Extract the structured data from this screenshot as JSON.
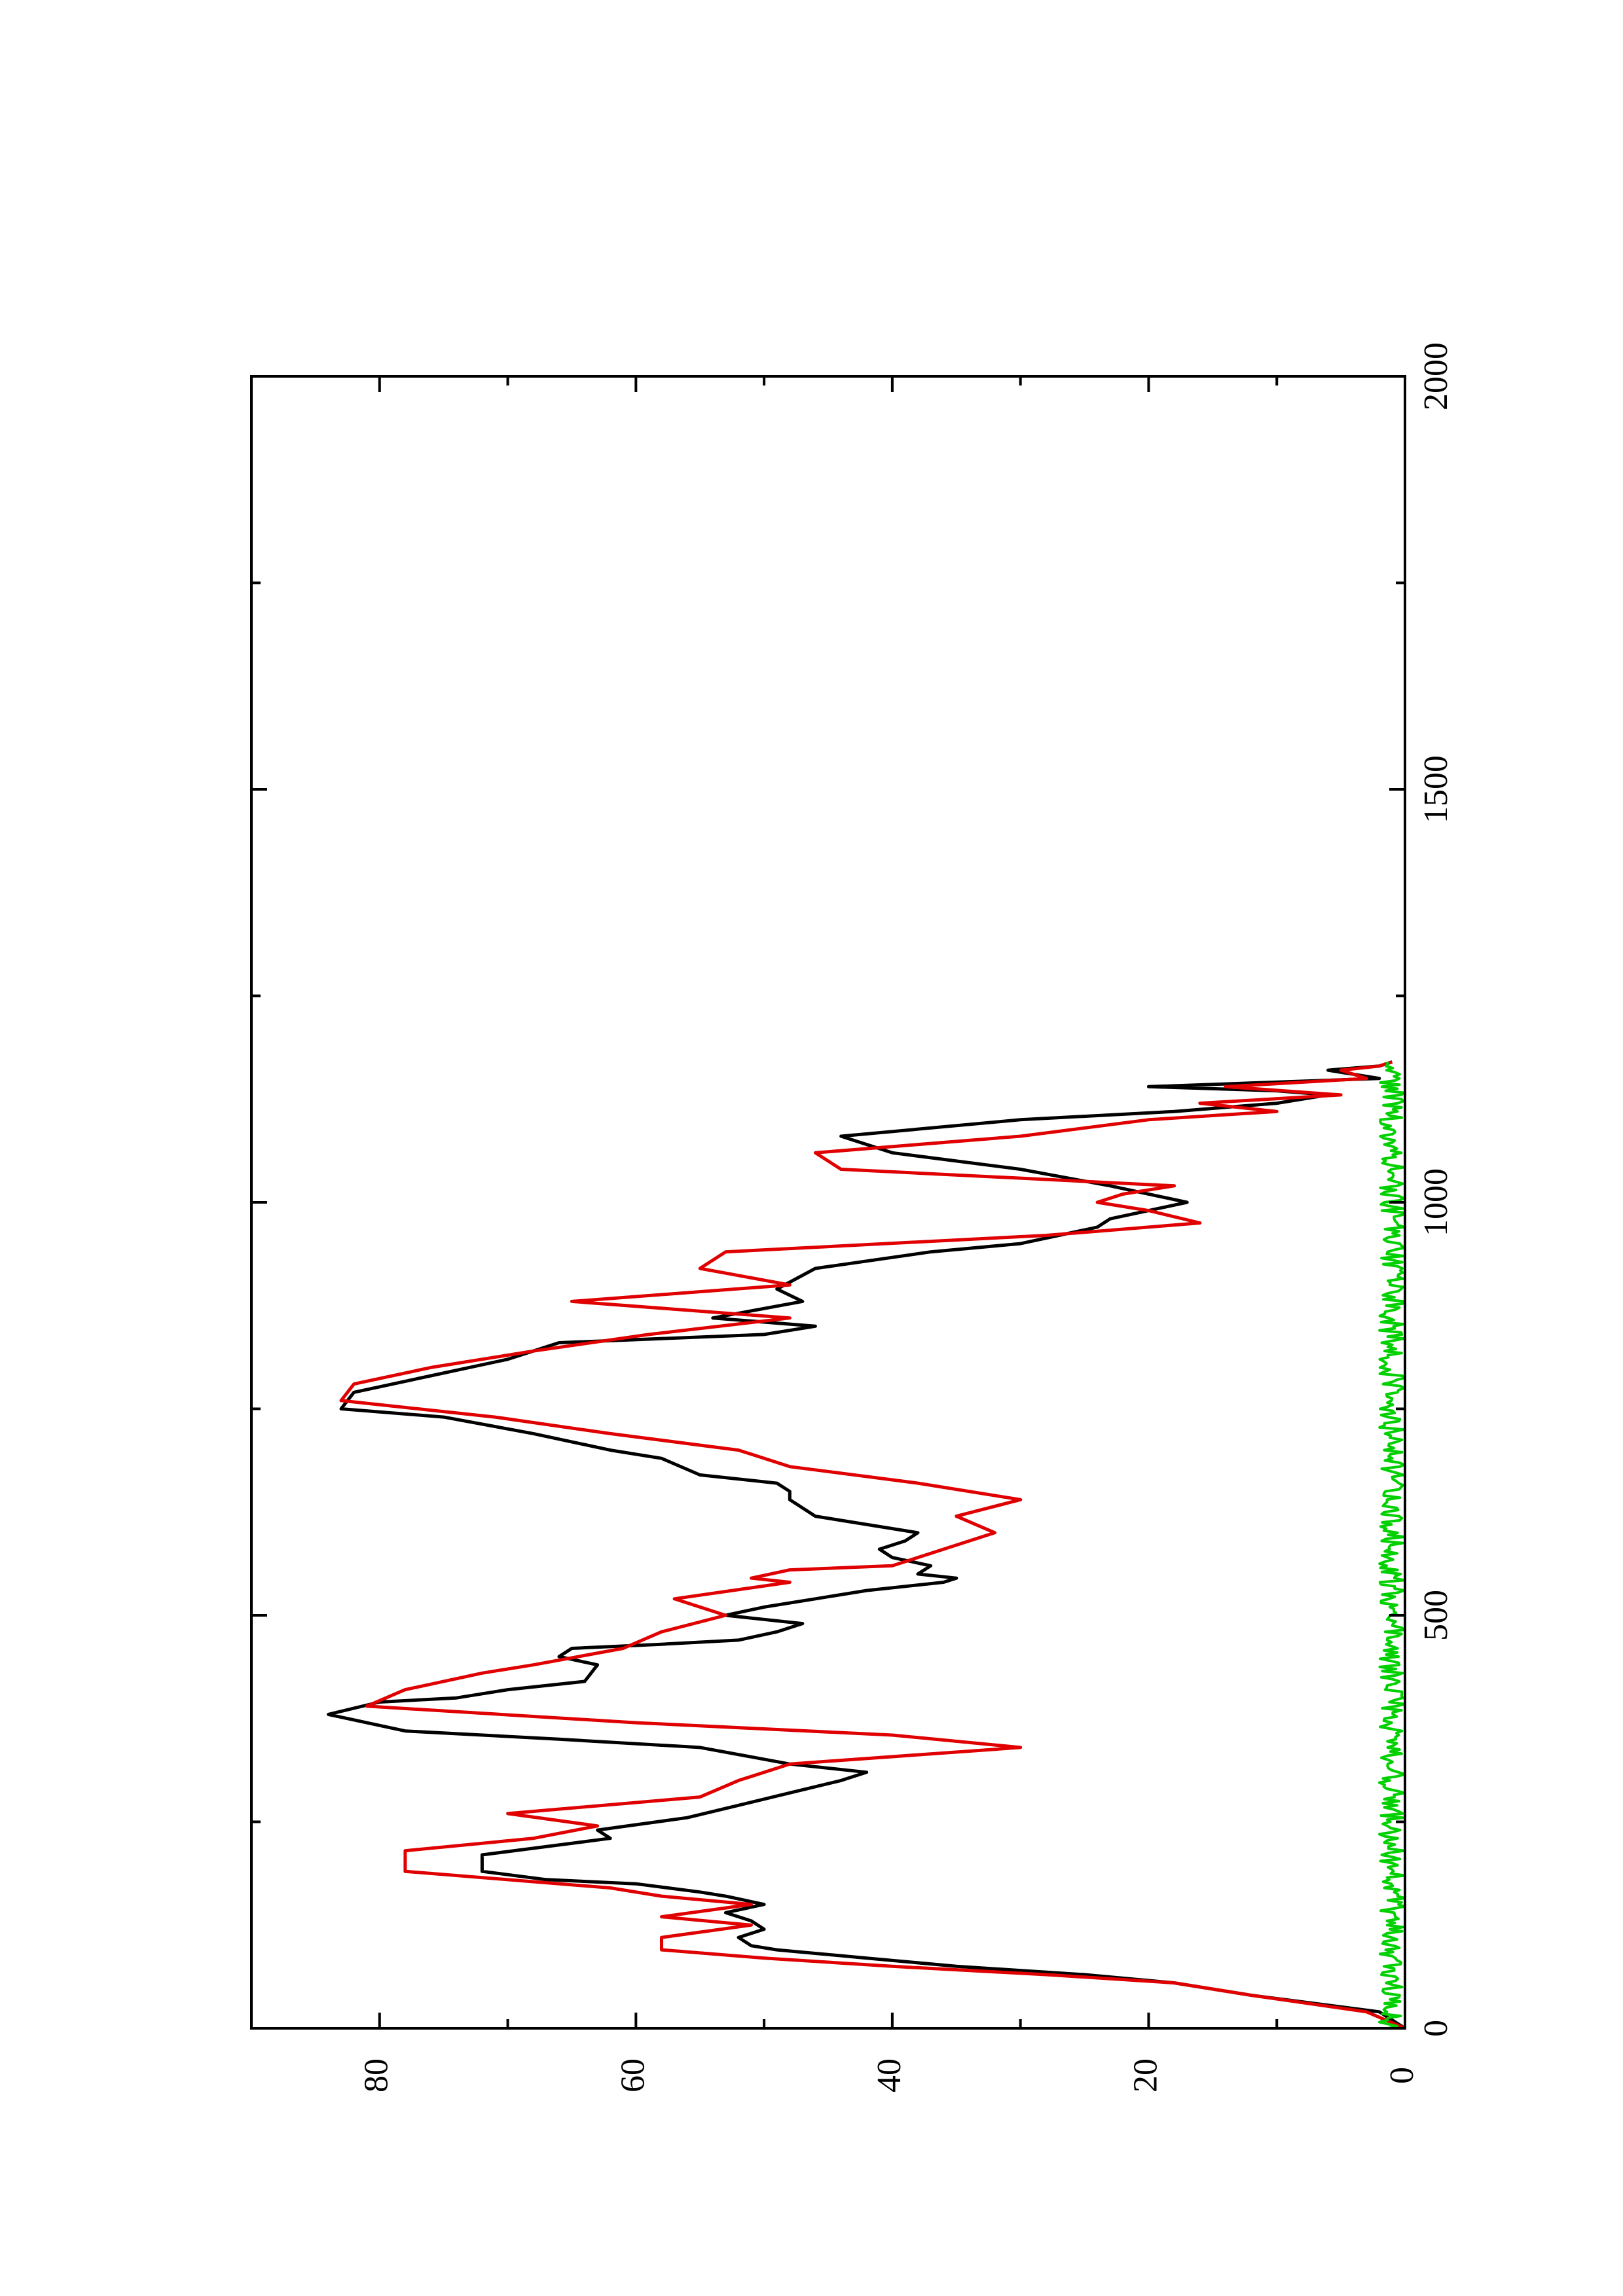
{
  "chart_data": {
    "type": "line",
    "title": "",
    "xlabel": "",
    "ylabel": "",
    "xlim": [
      0,
      2000
    ],
    "ylim": [
      0,
      90
    ],
    "xticks": [
      "0",
      "500",
      "1000",
      "1500",
      "2000"
    ],
    "yticks": [
      "0",
      "20",
      "40",
      "60",
      "80"
    ],
    "x_minor_ticks": [
      250,
      750,
      1250,
      1750
    ],
    "y_minor_ticks": [
      10,
      30,
      50,
      70
    ],
    "orientation": "rotated 90° counter-clockwise on the page",
    "grid": false,
    "legend": "none",
    "colors": {
      "black": "#000000",
      "red": "#e00000",
      "green": "#00d000"
    },
    "series": [
      {
        "color": "#000000",
        "x": [
          0,
          20,
          40,
          55,
          65,
          75,
          85,
          95,
          100,
          110,
          120,
          130,
          140,
          150,
          160,
          165,
          175,
          180,
          190,
          200,
          210,
          220,
          230,
          240,
          255,
          270,
          285,
          300,
          310,
          320,
          340,
          350,
          360,
          380,
          395,
          400,
          410,
          420,
          440,
          450,
          460,
          465,
          470,
          480,
          490,
          500,
          510,
          520,
          530,
          540,
          545,
          550,
          560,
          570,
          580,
          590,
          600,
          620,
          640,
          650,
          660,
          670,
          690,
          700,
          720,
          740,
          750,
          770,
          790,
          810,
          830,
          840,
          850,
          860,
          880,
          895,
          920,
          940,
          950,
          960,
          970,
          980,
          1000,
          1010,
          1020,
          1040,
          1060,
          1080,
          1100,
          1110,
          1120,
          1130,
          1135,
          1140,
          1150,
          1160,
          1165,
          1170
        ],
        "values": [
          0,
          2,
          12,
          18,
          25,
          35,
          42,
          49,
          51,
          52,
          50,
          51,
          53,
          50,
          53,
          55,
          60,
          67,
          72,
          72,
          72,
          67,
          62,
          63,
          56,
          52,
          48,
          44,
          42,
          48,
          55,
          66,
          78,
          84,
          80,
          74,
          70,
          64,
          63,
          66,
          65,
          58,
          52,
          49,
          47,
          53,
          50,
          46,
          42,
          36,
          35,
          38,
          37,
          40,
          41,
          39,
          38,
          46,
          48,
          48,
          49,
          55,
          58,
          62,
          68,
          75,
          83,
          82,
          76,
          70,
          66,
          50,
          46,
          54,
          47,
          49,
          46,
          37,
          30,
          27,
          24,
          23,
          17,
          20,
          23,
          30,
          40,
          44,
          30,
          18,
          10,
          6,
          10,
          20,
          2,
          6,
          2,
          1
        ]
      },
      {
        "color": "#e00000",
        "x": [
          0,
          20,
          40,
          55,
          65,
          75,
          85,
          95,
          110,
          125,
          135,
          150,
          160,
          170,
          190,
          215,
          230,
          245,
          260,
          280,
          300,
          320,
          340,
          355,
          370,
          390,
          410,
          430,
          440,
          460,
          480,
          500,
          520,
          540,
          545,
          555,
          560,
          580,
          600,
          620,
          640,
          660,
          680,
          700,
          720,
          740,
          760,
          780,
          800,
          820,
          840,
          860,
          880,
          900,
          920,
          940,
          960,
          975,
          990,
          1000,
          1010,
          1020,
          1040,
          1060,
          1080,
          1100,
          1110,
          1120,
          1130,
          1140,
          1150,
          1160,
          1165,
          1170
        ],
        "values": [
          0,
          3,
          12,
          18,
          28,
          40,
          50,
          58,
          58,
          51,
          58,
          51,
          58,
          62,
          78,
          78,
          68,
          63,
          70,
          55,
          52,
          48,
          30,
          40,
          60,
          81,
          78,
          72,
          68,
          61,
          58,
          53,
          57,
          48,
          51,
          48,
          40,
          36,
          32,
          35,
          30,
          38,
          48,
          52,
          62,
          71,
          83,
          82,
          76,
          68,
          59,
          48,
          65,
          48,
          55,
          53,
          28,
          16,
          20,
          24,
          22,
          18,
          44,
          46,
          30,
          20,
          10,
          16,
          5,
          14,
          3,
          5,
          2,
          1
        ]
      },
      {
        "color": "#00d000",
        "x": [
          0,
          1170
        ],
        "values": [
          0,
          0
        ],
        "noise_amplitude": 2
      }
    ]
  }
}
